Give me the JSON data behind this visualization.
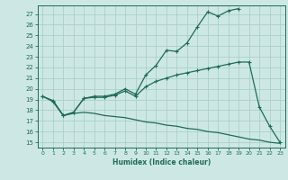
{
  "xlabel": "Humidex (Indice chaleur)",
  "xlim": [
    -0.5,
    23.5
  ],
  "ylim": [
    14.5,
    27.8
  ],
  "yticks": [
    15,
    16,
    17,
    18,
    19,
    20,
    21,
    22,
    23,
    24,
    25,
    26,
    27
  ],
  "xticks": [
    0,
    1,
    2,
    3,
    4,
    5,
    6,
    7,
    8,
    9,
    10,
    11,
    12,
    13,
    14,
    15,
    16,
    17,
    18,
    19,
    20,
    21,
    22,
    23
  ],
  "bg_color": "#cde8e4",
  "grid_color": "#aad0cc",
  "line_color": "#1e6b58",
  "line1_x": [
    0,
    1,
    2,
    3,
    4,
    5,
    6,
    7,
    8,
    9,
    10,
    11,
    12,
    13,
    14,
    15,
    16,
    17,
    18,
    19
  ],
  "line1_y": [
    19.3,
    18.8,
    17.5,
    17.8,
    19.1,
    19.3,
    19.3,
    19.5,
    20.0,
    19.5,
    21.3,
    22.2,
    23.6,
    23.5,
    24.3,
    25.8,
    27.2,
    26.8,
    27.3,
    27.5
  ],
  "line2_x": [
    0,
    1,
    2,
    3,
    4,
    5,
    6,
    7,
    8,
    9,
    10,
    11,
    12,
    13,
    14,
    15,
    16,
    17,
    18,
    19,
    20,
    21,
    22,
    23
  ],
  "line2_y": [
    19.3,
    18.9,
    17.5,
    17.8,
    19.1,
    19.2,
    19.2,
    19.4,
    19.8,
    19.3,
    20.2,
    20.7,
    21.0,
    21.3,
    21.5,
    21.7,
    21.9,
    22.1,
    22.3,
    22.5,
    22.5,
    18.3,
    16.5,
    15.0
  ],
  "line3_x": [
    1,
    2,
    3,
    4,
    5,
    6,
    7,
    8,
    9,
    10,
    11,
    12,
    13,
    14,
    15,
    16,
    17,
    18,
    19,
    20,
    21,
    22,
    23
  ],
  "line3_y": [
    18.9,
    17.5,
    17.7,
    17.8,
    17.7,
    17.5,
    17.4,
    17.3,
    17.1,
    16.9,
    16.8,
    16.6,
    16.5,
    16.3,
    16.2,
    16.0,
    15.9,
    15.7,
    15.5,
    15.3,
    15.2,
    15.0,
    14.9
  ]
}
